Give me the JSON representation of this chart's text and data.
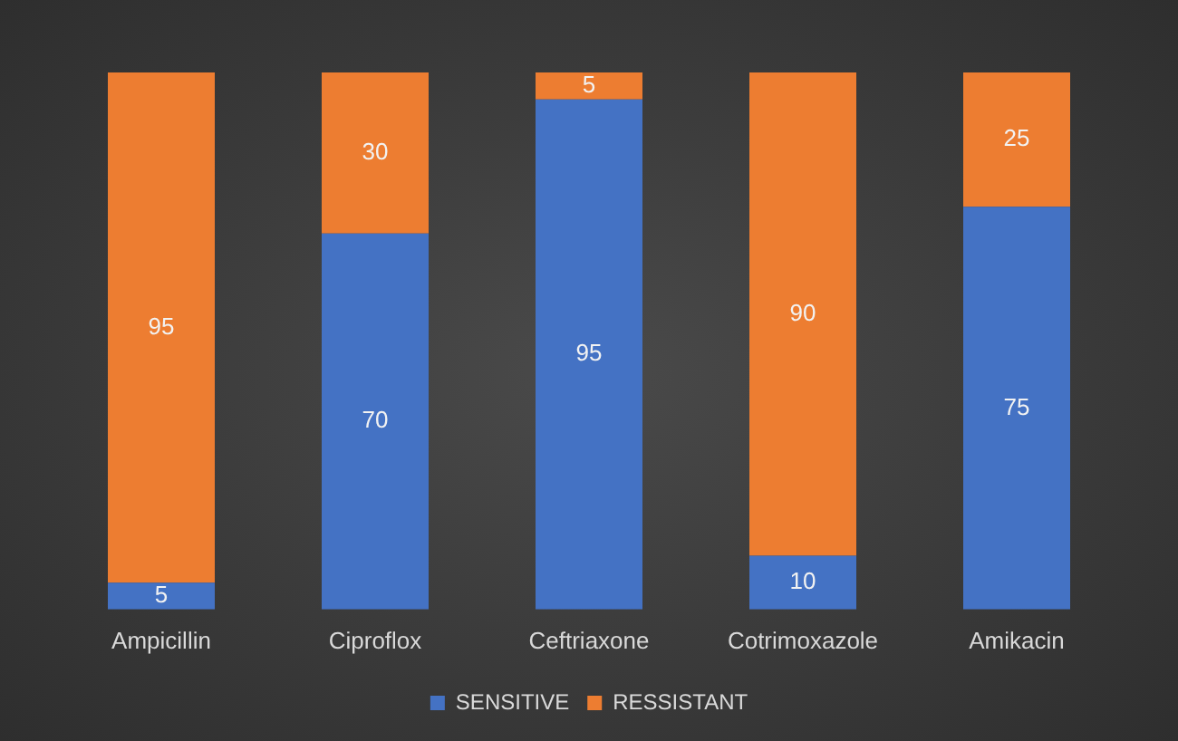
{
  "chart_data": {
    "type": "bar",
    "stacked": true,
    "categories": [
      "Ampicillin",
      "Ciproflox",
      "Ceftriaxone",
      "Cotrimoxazole",
      "Amikacin"
    ],
    "series": [
      {
        "name": "SENSITIVE",
        "color": "#4472c4",
        "values": [
          5,
          70,
          95,
          10,
          75
        ]
      },
      {
        "name": "RESSISTANT",
        "color": "#ed7d31",
        "values": [
          95,
          30,
          5,
          90,
          25
        ]
      }
    ],
    "data_labels": true,
    "legend": "bottom",
    "grid": false
  }
}
